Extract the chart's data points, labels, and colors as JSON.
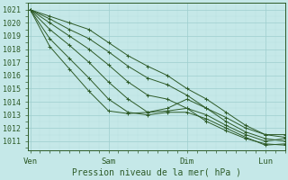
{
  "xlabel": "Pression niveau de la mer( hPa )",
  "bg_color": "#c5e8e8",
  "grid_major_color": "#9ecece",
  "grid_minor_color": "#b8dfdf",
  "line_color": "#2d5a27",
  "ylim": [
    1010.3,
    1021.5
  ],
  "yticks": [
    1011,
    1012,
    1013,
    1014,
    1015,
    1016,
    1017,
    1018,
    1019,
    1020,
    1021
  ],
  "xtick_labels": [
    "Ven",
    "Sam",
    "Dim",
    "Lun"
  ],
  "xtick_positions": [
    0,
    72,
    144,
    216
  ],
  "xlim": [
    -2,
    234
  ],
  "lines": [
    [
      0,
      1021.0,
      18,
      1020.5,
      36,
      1020.0,
      54,
      1019.5,
      72,
      1018.5,
      90,
      1017.5,
      108,
      1016.7,
      126,
      1016.0,
      144,
      1015.0,
      162,
      1014.2,
      180,
      1013.2,
      198,
      1012.2,
      216,
      1011.5,
      234,
      1011.3
    ],
    [
      0,
      1021.0,
      18,
      1020.3,
      36,
      1019.5,
      54,
      1018.8,
      72,
      1017.8,
      90,
      1016.7,
      108,
      1015.8,
      126,
      1015.3,
      144,
      1014.5,
      162,
      1013.5,
      180,
      1012.5,
      198,
      1011.7,
      216,
      1011.2,
      234,
      1011.0
    ],
    [
      0,
      1021.0,
      18,
      1020.0,
      36,
      1019.0,
      54,
      1018.0,
      72,
      1016.8,
      90,
      1015.5,
      108,
      1014.5,
      126,
      1014.2,
      144,
      1013.5,
      162,
      1012.5,
      180,
      1011.8,
      198,
      1011.2,
      216,
      1010.8,
      234,
      1010.7
    ],
    [
      0,
      1021.0,
      18,
      1019.5,
      36,
      1018.3,
      54,
      1017.0,
      72,
      1015.5,
      90,
      1014.2,
      108,
      1013.2,
      126,
      1013.3,
      144,
      1013.5,
      162,
      1013.0,
      180,
      1012.2,
      198,
      1011.5,
      216,
      1011.0,
      234,
      1011.2
    ],
    [
      0,
      1021.0,
      18,
      1018.8,
      36,
      1017.3,
      54,
      1015.8,
      72,
      1014.2,
      90,
      1013.2,
      108,
      1013.0,
      126,
      1013.2,
      144,
      1013.2,
      162,
      1012.7,
      180,
      1012.0,
      198,
      1011.3,
      216,
      1010.7,
      234,
      1010.8
    ],
    [
      0,
      1021.0,
      18,
      1018.2,
      36,
      1016.5,
      54,
      1014.8,
      72,
      1013.3,
      90,
      1013.1,
      108,
      1013.2,
      126,
      1013.5,
      144,
      1014.2,
      162,
      1013.5,
      180,
      1012.8,
      198,
      1012.0,
      216,
      1011.5,
      234,
      1011.5
    ]
  ]
}
